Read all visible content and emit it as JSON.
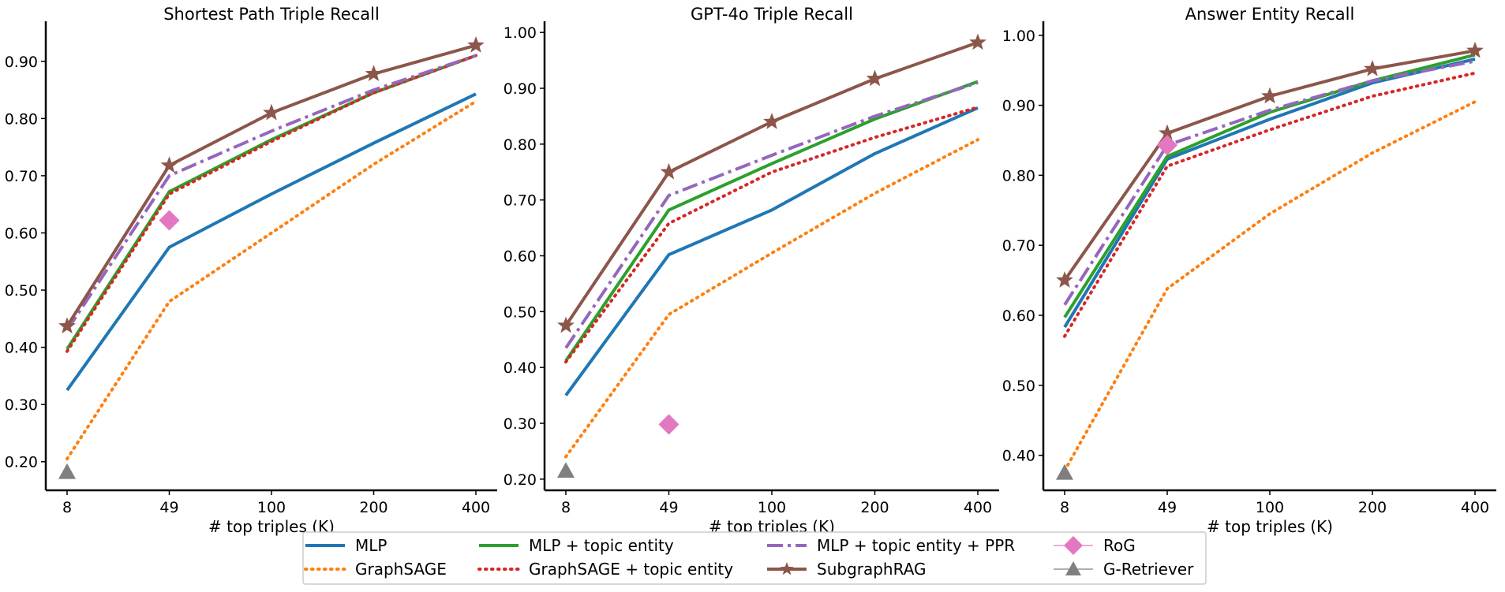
{
  "colors": {
    "mlp": "#1f77b4",
    "graphsage": "#ff7f0e",
    "mlp_topic": "#2ca02c",
    "graphsage_topic": "#d62728",
    "mlp_topic_ppr": "#9467bd",
    "subgraphrag": "#8c564b",
    "rog": "#e377c2",
    "gretriever": "#7f7f7f"
  },
  "chart_data": [
    {
      "type": "line",
      "title": "Shortest Path Triple Recall",
      "xlabel": "# top triples (K)",
      "ylabel": "",
      "categories": [
        "8",
        "49",
        "100",
        "200",
        "400"
      ],
      "ylim": [
        0.15,
        0.97
      ],
      "yticks": [
        "0.20",
        "0.30",
        "0.40",
        "0.50",
        "0.60",
        "0.70",
        "0.80",
        "0.90"
      ],
      "series": [
        {
          "name": "MLP",
          "values": [
            0.325,
            0.575,
            0.668,
            0.757,
            0.843
          ]
        },
        {
          "name": "GraphSAGE",
          "values": [
            0.205,
            0.48,
            0.6,
            0.72,
            0.83
          ]
        },
        {
          "name": "MLP + topic entity",
          "values": [
            0.397,
            0.672,
            0.763,
            0.845,
            0.91
          ]
        },
        {
          "name": "GraphSAGE + topic entity",
          "values": [
            0.393,
            0.668,
            0.76,
            0.845,
            0.91
          ]
        },
        {
          "name": "MLP + topic entity + PPR",
          "values": [
            0.43,
            0.7,
            0.778,
            0.85,
            0.91
          ]
        },
        {
          "name": "SubgraphRAG",
          "values": [
            0.437,
            0.718,
            0.81,
            0.878,
            0.928
          ]
        }
      ],
      "points": [
        {
          "name": "RoG",
          "category": "49",
          "value": 0.622
        },
        {
          "name": "G-Retriever",
          "category": "8",
          "value": 0.182
        }
      ]
    },
    {
      "type": "line",
      "title": "GPT-4o Triple Recall",
      "xlabel": "# top triples (K)",
      "ylabel": "",
      "categories": [
        "8",
        "49",
        "100",
        "200",
        "400"
      ],
      "ylim": [
        0.18,
        1.02
      ],
      "yticks": [
        "0.20",
        "0.30",
        "0.40",
        "0.50",
        "0.60",
        "0.70",
        "0.80",
        "0.90",
        "1.00"
      ],
      "series": [
        {
          "name": "MLP",
          "values": [
            0.35,
            0.602,
            0.682,
            0.783,
            0.865
          ]
        },
        {
          "name": "GraphSAGE",
          "values": [
            0.24,
            0.495,
            0.605,
            0.712,
            0.808
          ]
        },
        {
          "name": "MLP + topic entity",
          "values": [
            0.412,
            0.682,
            0.765,
            0.845,
            0.912
          ]
        },
        {
          "name": "GraphSAGE + topic entity",
          "values": [
            0.41,
            0.658,
            0.75,
            0.812,
            0.866
          ]
        },
        {
          "name": "MLP + topic entity + PPR",
          "values": [
            0.435,
            0.708,
            0.78,
            0.85,
            0.91
          ]
        },
        {
          "name": "SubgraphRAG",
          "values": [
            0.475,
            0.75,
            0.84,
            0.917,
            0.982
          ]
        }
      ],
      "points": [
        {
          "name": "RoG",
          "category": "49",
          "value": 0.298
        },
        {
          "name": "G-Retriever",
          "category": "8",
          "value": 0.215
        }
      ]
    },
    {
      "type": "line",
      "title": "Answer Entity Recall",
      "xlabel": "# top triples (K)",
      "ylabel": "",
      "categories": [
        "8",
        "49",
        "100",
        "200",
        "400"
      ],
      "ylim": [
        0.35,
        1.02
      ],
      "yticks": [
        "0.40",
        "0.50",
        "0.60",
        "0.70",
        "0.80",
        "0.90",
        "1.00"
      ],
      "series": [
        {
          "name": "MLP",
          "values": [
            0.583,
            0.823,
            0.88,
            0.932,
            0.966
          ]
        },
        {
          "name": "GraphSAGE",
          "values": [
            0.378,
            0.638,
            0.745,
            0.832,
            0.905
          ]
        },
        {
          "name": "MLP + topic entity",
          "values": [
            0.597,
            0.827,
            0.89,
            0.935,
            0.972
          ]
        },
        {
          "name": "GraphSAGE + topic entity",
          "values": [
            0.57,
            0.813,
            0.865,
            0.913,
            0.946
          ]
        },
        {
          "name": "MLP + topic entity + PPR",
          "values": [
            0.615,
            0.843,
            0.893,
            0.935,
            0.963
          ]
        },
        {
          "name": "SubgraphRAG",
          "values": [
            0.65,
            0.86,
            0.913,
            0.952,
            0.978
          ]
        }
      ],
      "points": [
        {
          "name": "RoG",
          "category": "49",
          "value": 0.843
        },
        {
          "name": "G-Retriever",
          "category": "8",
          "value": 0.375
        }
      ]
    }
  ],
  "legend": {
    "placement": "bottom-center",
    "items": [
      {
        "key": "mlp",
        "label": "MLP",
        "style": "solid"
      },
      {
        "key": "graphsage",
        "label": "GraphSAGE",
        "style": "dotted"
      },
      {
        "key": "mlp_topic",
        "label": "MLP + topic entity",
        "style": "solid"
      },
      {
        "key": "graphsage_topic",
        "label": "GraphSAGE + topic entity",
        "style": "dotted"
      },
      {
        "key": "mlp_topic_ppr",
        "label": "MLP + topic entity + PPR",
        "style": "dashdot"
      },
      {
        "key": "subgraphrag",
        "label": "SubgraphRAG",
        "style": "star"
      },
      {
        "key": "rog",
        "label": "RoG",
        "style": "diamond"
      },
      {
        "key": "gretriever",
        "label": "G-Retriever",
        "style": "triangle"
      }
    ]
  }
}
